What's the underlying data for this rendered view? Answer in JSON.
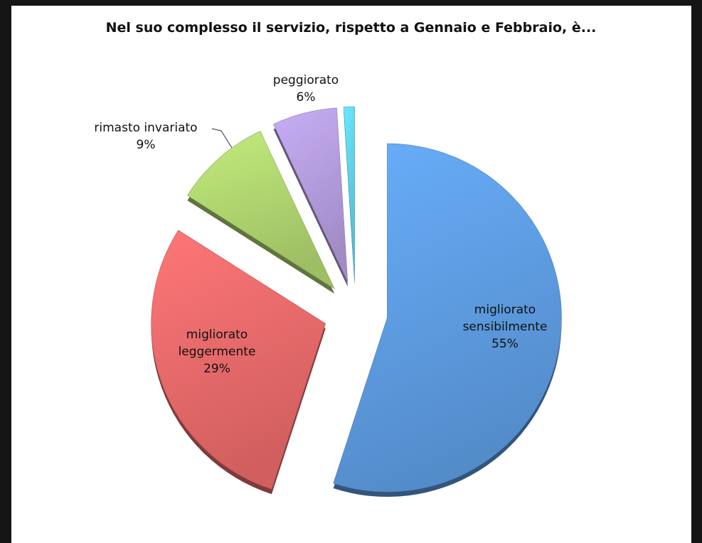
{
  "chart_data": {
    "type": "pie",
    "title": "Nel suo complesso il servizio, rispetto a Gennaio e Febbraio, è...",
    "categories": [
      "migliorato sensibilmente",
      "migliorato leggermente",
      "rimasto invariato",
      "peggiorato",
      null
    ],
    "values": [
      55,
      29,
      9,
      6,
      1
    ],
    "value_labels": [
      "55%",
      "29%",
      "9%",
      "6%",
      null
    ],
    "colors": [
      "#5d9be0",
      "#e8696a",
      "#aed36f",
      "#b39bdc",
      "#5fd0ea"
    ],
    "start_angle": 0,
    "direction": "clockwise",
    "exploded": true
  }
}
